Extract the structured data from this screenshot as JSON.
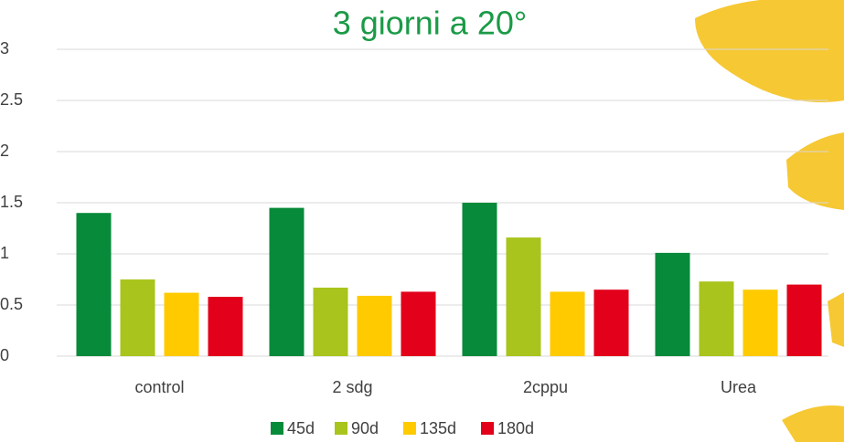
{
  "chart_data": {
    "type": "bar",
    "title": "3 giorni a 20°",
    "categories": [
      "control",
      "2 sdg",
      "2cppu",
      "Urea"
    ],
    "series": [
      {
        "name": "45d",
        "color": "#078a3a",
        "values": [
          1.4,
          1.45,
          1.5,
          1.01
        ]
      },
      {
        "name": "90d",
        "color": "#a9c41c",
        "values": [
          0.75,
          0.67,
          1.16,
          0.73
        ]
      },
      {
        "name": "135d",
        "color": "#ffca00",
        "values": [
          0.62,
          0.59,
          0.63,
          0.65
        ]
      },
      {
        "name": "180d",
        "color": "#e2001a",
        "values": [
          0.58,
          0.63,
          0.65,
          0.7
        ]
      }
    ],
    "ylim": [
      0,
      3
    ],
    "yticks": [
      0,
      0.5,
      1,
      1.5,
      2,
      2.5,
      3
    ],
    "grid": true,
    "legend": "bottom"
  }
}
